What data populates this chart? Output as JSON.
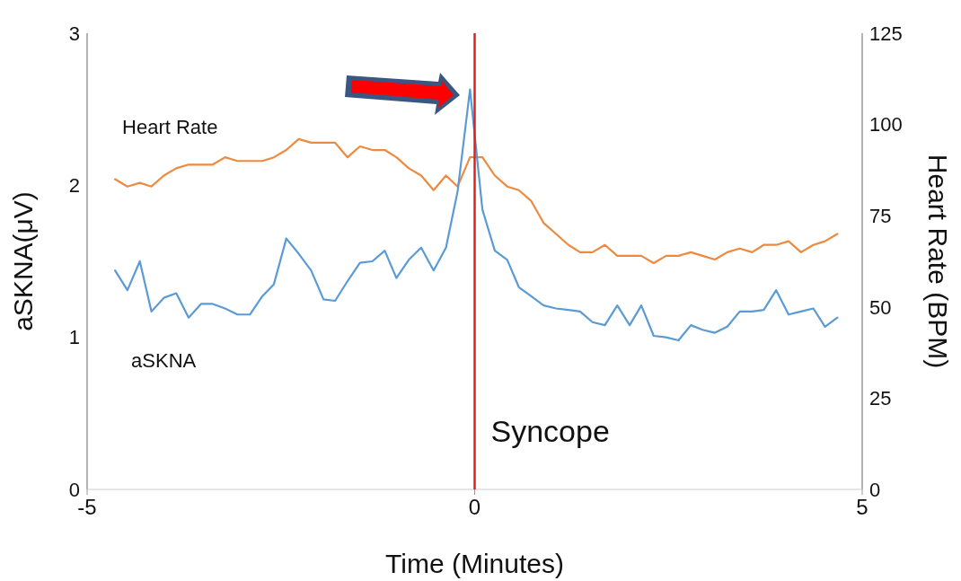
{
  "chart_data": {
    "type": "line",
    "xlabel": "Time (Minutes)",
    "ylabel": "aSKNA(μV)",
    "y2label": "Heart Rate (BPM)",
    "x": [
      -4.64,
      -4.48,
      -4.32,
      -4.17,
      -4.01,
      -3.85,
      -3.69,
      -3.53,
      -3.38,
      -3.22,
      -3.06,
      -2.9,
      -2.74,
      -2.59,
      -2.43,
      -2.27,
      -2.11,
      -1.95,
      -1.8,
      -1.64,
      -1.48,
      -1.32,
      -1.16,
      -1.01,
      -0.85,
      -0.69,
      -0.53,
      -0.37,
      -0.22,
      -0.06,
      0.1,
      0.26,
      0.42,
      0.57,
      0.73,
      0.89,
      1.05,
      1.21,
      1.36,
      1.52,
      1.68,
      1.84,
      2.0,
      2.15,
      2.31,
      2.47,
      2.63,
      2.79,
      2.94,
      3.1,
      3.26,
      3.42,
      3.58,
      3.73,
      3.89,
      4.05,
      4.21,
      4.37,
      4.52,
      4.68
    ],
    "series": [
      {
        "name": "Heart Rate",
        "color": "#ed8a3f",
        "axis": "y2",
        "values": [
          85,
          83,
          84,
          83,
          86,
          88,
          89,
          89,
          89,
          91,
          90,
          90,
          90,
          91,
          93,
          96,
          95,
          95,
          95,
          91,
          94,
          93,
          93,
          91,
          88,
          86,
          82,
          86,
          83,
          91,
          91,
          86,
          83,
          82,
          79,
          73,
          70,
          67,
          65,
          65,
          67,
          64,
          64,
          64,
          62,
          64,
          64,
          65,
          64,
          63,
          65,
          66,
          65,
          67,
          67,
          68,
          65,
          67,
          68,
          70
        ]
      },
      {
        "name": "aSKNA",
        "color": "#5b9bd5",
        "values": [
          1.44,
          1.31,
          1.5,
          1.17,
          1.26,
          1.29,
          1.13,
          1.22,
          1.22,
          1.19,
          1.15,
          1.15,
          1.27,
          1.35,
          1.65,
          1.55,
          1.44,
          1.25,
          1.24,
          1.37,
          1.49,
          1.5,
          1.57,
          1.39,
          1.51,
          1.59,
          1.44,
          1.59,
          1.96,
          2.63,
          1.84,
          1.57,
          1.51,
          1.33,
          1.27,
          1.21,
          1.19,
          1.18,
          1.17,
          1.1,
          1.08,
          1.21,
          1.08,
          1.21,
          1.01,
          1.0,
          0.98,
          1.08,
          1.05,
          1.03,
          1.07,
          1.17,
          1.17,
          1.18,
          1.31,
          1.15,
          1.17,
          1.19,
          1.07,
          1.13
        ]
      }
    ],
    "xlim": [
      -5,
      5
    ],
    "xticks": [
      -5,
      0,
      5
    ],
    "ylim": [
      0,
      3
    ],
    "yticks": [
      0,
      1,
      2,
      3
    ],
    "y2lim": [
      0,
      125
    ],
    "y2ticks": [
      0,
      25,
      50,
      75,
      100,
      125
    ],
    "ref_lines": [
      {
        "axis": "x",
        "value": 0,
        "label": "Syncope",
        "color": "#e0201c"
      }
    ],
    "line_style": "solid",
    "marker": "none",
    "grid": false
  }
}
